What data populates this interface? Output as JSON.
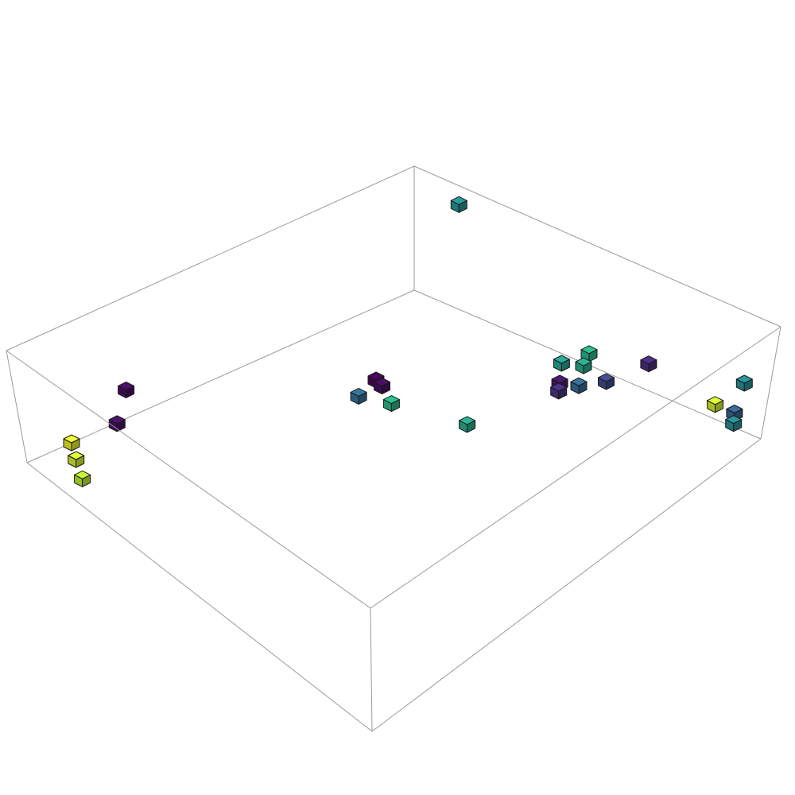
{
  "chart_data": {
    "type": "scatter",
    "subtype": "3d-cube-scatter",
    "title": "",
    "xlabel": "",
    "ylabel": "",
    "zlabel": "",
    "axes_box": "visible",
    "ticks": "none",
    "legend": "none",
    "colormap": "viridis",
    "color_range": [
      0,
      1
    ],
    "xlim": [
      0,
      10
    ],
    "ylim": [
      0,
      10
    ],
    "zlim": [
      0,
      3
    ],
    "points": [
      {
        "x": 0.09,
        "y": 8.49,
        "z": 0.53,
        "c": 0.89
      },
      {
        "x": 0.54,
        "y": 9.31,
        "z": 0.55,
        "c": 0.95
      },
      {
        "x": 0.32,
        "y": 8.93,
        "z": 0.55,
        "c": 0.92
      },
      {
        "x": 1.48,
        "y": 9.05,
        "z": 0.52,
        "c": 0.05
      },
      {
        "x": 2.13,
        "y": 9.52,
        "z": 0.57,
        "c": 0.04
      },
      {
        "x": 9.87,
        "y": 8.6,
        "z": 0.17,
        "c": 0.48
      },
      {
        "x": 9.58,
        "y": 0.31,
        "z": 0.47,
        "c": 0.45
      },
      {
        "x": 9.72,
        "y": 0.44,
        "z": 0.54,
        "c": 0.3
      },
      {
        "x": 9.57,
        "y": 0.83,
        "z": 0.6,
        "c": 0.92
      },
      {
        "x": 9.79,
        "y": 0.22,
        "z": 1.36,
        "c": 0.47
      },
      {
        "x": 9.43,
        "y": 2.6,
        "z": 0.53,
        "c": 0.15
      },
      {
        "x": 8.3,
        "y": 3.85,
        "z": 0.53,
        "c": 0.55
      },
      {
        "x": 8.58,
        "y": 3.53,
        "z": 0.48,
        "c": 0.58
      },
      {
        "x": 8.83,
        "y": 3.65,
        "z": 0.52,
        "c": 0.62
      },
      {
        "x": 8.19,
        "y": 3.23,
        "z": 0.47,
        "c": 0.33
      },
      {
        "x": 7.79,
        "y": 3.36,
        "z": 0.54,
        "c": 0.16
      },
      {
        "x": 7.95,
        "y": 3.51,
        "z": 0.52,
        "c": 0.08
      },
      {
        "x": 8.55,
        "y": 2.84,
        "z": 0.57,
        "c": 0.22
      },
      {
        "x": 6.1,
        "y": 4.11,
        "z": 0.44,
        "c": 0.58
      },
      {
        "x": 5.44,
        "y": 5.56,
        "z": 0.47,
        "c": 0.63
      },
      {
        "x": 5.12,
        "y": 6.15,
        "z": 0.49,
        "c": 0.35
      },
      {
        "x": 5.57,
        "y": 5.98,
        "z": 0.53,
        "c": 0.04
      },
      {
        "x": 5.62,
        "y": 6.21,
        "z": 0.49,
        "c": 0.02
      }
    ]
  }
}
